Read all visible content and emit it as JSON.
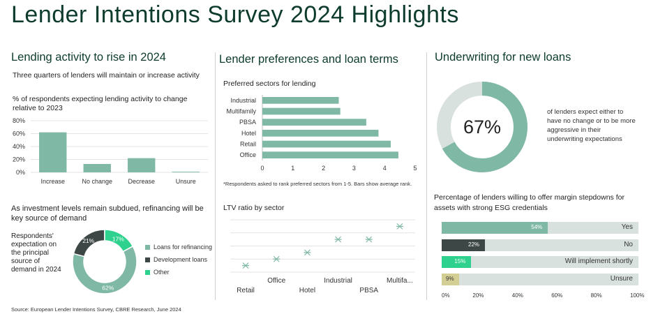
{
  "title": "Lender Intentions Survey 2024 Highlights",
  "source": "Source: European Lender Intentions Survey, CBRE Research, June 2024",
  "colors": {
    "teal": "#7fb8a4",
    "dark": "#3d4745",
    "green": "#2fd18e",
    "khaki": "#d3ce93",
    "track": "#d9e1de",
    "heading": "#0d3b2e"
  },
  "section1": {
    "heading": "Lending activity to rise in 2024",
    "subheading": "Three quarters of lenders will maintain or increase activity",
    "chart_label": "% of respondents expecting lending activity to change relative to 2023",
    "section2_heading": "As investment levels remain subdued, refinancing will be key source of demand",
    "donut_label": "Respondents' expectation on the principal source of demand in 2024"
  },
  "section2": {
    "heading": "Lender preferences and loan terms",
    "bar_title": "Preferred sectors for lending",
    "footnote": "*Respondents asked to rank preferred sectors from 1-5. Bars show average rank.",
    "ltv_title": "LTV ratio by sector"
  },
  "section3": {
    "heading": "Underwriting for new loans",
    "big_pct": "67%",
    "big_value": 67,
    "big_text": "of lenders expect either to have no change or to be more aggressive in their underwriting expectations",
    "margin_title": "Percentage of lenders willing to offer margin stepdowns for assets with strong ESG credentials"
  },
  "chart_data": [
    {
      "type": "bar",
      "categories": [
        "Increase",
        "No change",
        "Decrease",
        "Unsure"
      ],
      "values": [
        62,
        13,
        22,
        1
      ],
      "yticks": [
        "0%",
        "20%",
        "40%",
        "60%",
        "80%"
      ],
      "ylim": [
        0,
        80
      ],
      "grid": true
    },
    {
      "type": "pie",
      "categories": [
        "Loans for refinancing",
        "Development loans",
        "Other"
      ],
      "values": [
        62,
        21,
        17
      ],
      "labels": [
        "62%",
        "21%",
        "17%"
      ],
      "legend": "right"
    },
    {
      "type": "bar",
      "orientation": "horizontal",
      "title": "Preferred sectors for lending",
      "categories": [
        "Industrial",
        "Multifamily",
        "PBSA",
        "Hotel",
        "Retail",
        "Office"
      ],
      "values": [
        2.5,
        2.55,
        3.4,
        3.8,
        4.2,
        4.45
      ],
      "xticks": [
        "0",
        "1",
        "2",
        "3",
        "4",
        "5"
      ],
      "xlim": [
        0,
        5
      ]
    },
    {
      "type": "scatter",
      "title": "LTV ratio by sector",
      "categories": [
        "Retail",
        "Office",
        "Hotel",
        "Industrial",
        "PBSA",
        "Multifa..."
      ],
      "values": [
        1,
        2,
        3,
        5,
        5,
        7
      ],
      "grid": true
    },
    {
      "type": "bar",
      "orientation": "horizontal",
      "title": "Percentage of lenders willing to offer margin stepdowns for assets with strong ESG credentials",
      "categories": [
        "Yes",
        "No",
        "Will implement shortly",
        "Unsure"
      ],
      "values": [
        54,
        22,
        15,
        9
      ],
      "labels": [
        "54%",
        "22%",
        "15%",
        "9%"
      ],
      "colors": [
        "#7fb8a4",
        "#3d4745",
        "#2fd18e",
        "#d3ce93"
      ],
      "xticks": [
        "0%",
        "20%",
        "40%",
        "60%",
        "80%",
        "100%"
      ],
      "xlim": [
        0,
        100
      ]
    }
  ]
}
